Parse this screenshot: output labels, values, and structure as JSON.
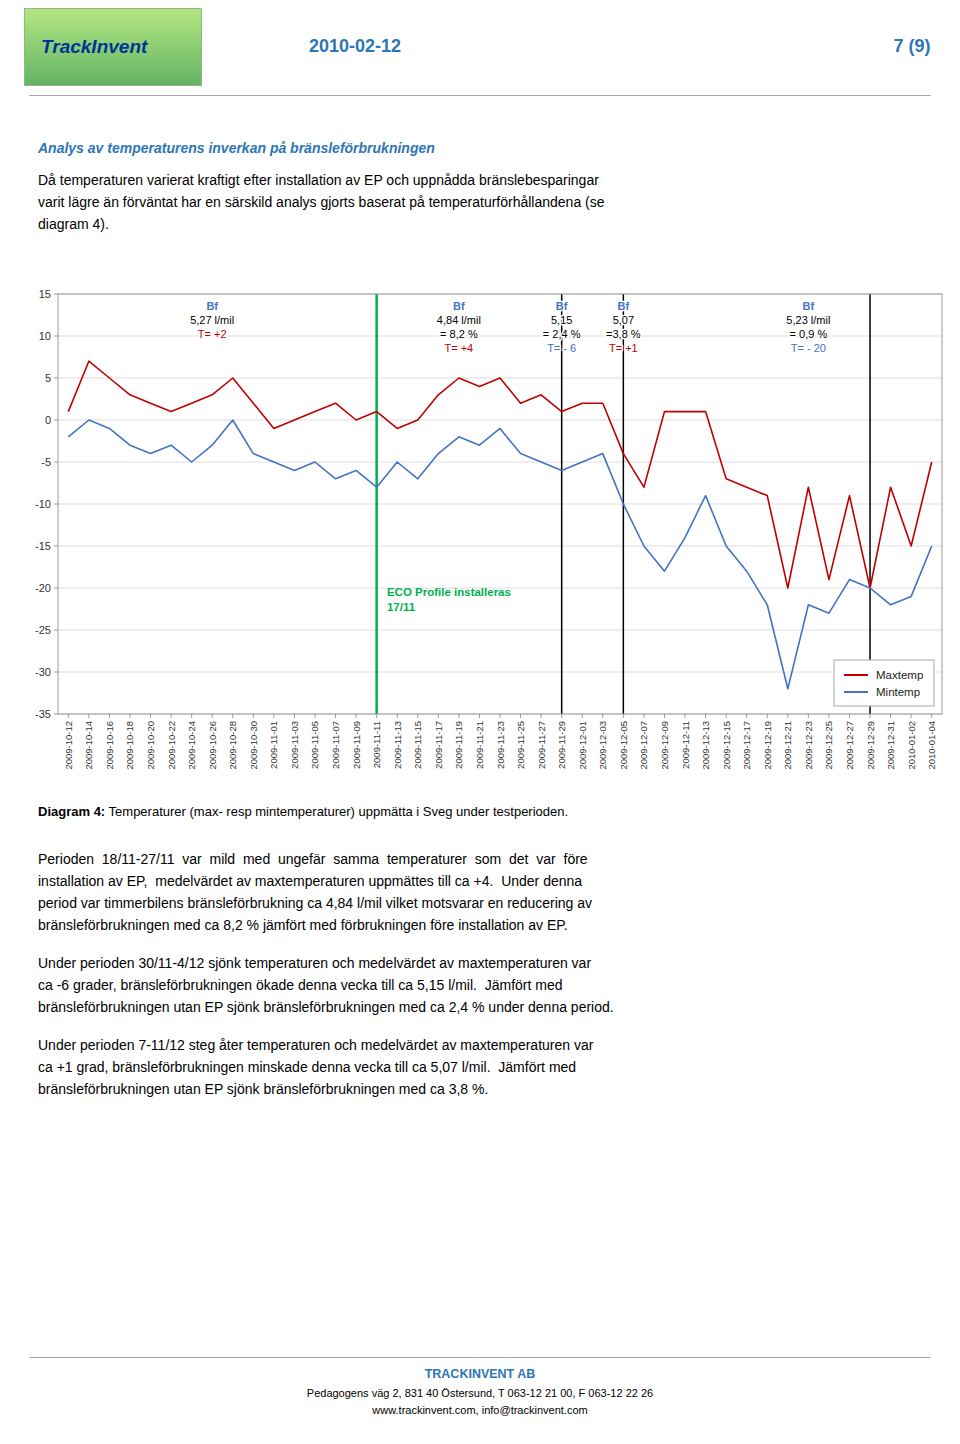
{
  "page": {
    "logo": "TrackInvent",
    "date": "2010-02-12",
    "page_num": "7 (9)",
    "header_color": "#2E75B6",
    "border_color": "#AAAAAA",
    "heading": "Analys av temperaturens inverkan på bränsleförbrukningen",
    "intro_lines": [
      "Då temperaturen varierat kraftigt efter installation av EP och uppnådda bränslebesparingar",
      "varit lägre än förväntat har en särskild analys gjorts baserat på temperaturförhållandena (se",
      "diagram 4)."
    ],
    "caption_bold": "Diagram 4:",
    "caption": " Temperaturer (max- resp mintemperaturer) uppmätta i Sveg under testperioden.",
    "paragraphs": [
      "Perioden  18/11-27/11  var  mild  med  ungefär  samma  temperaturer  som  det  var  före\ninstallation av EP,  medelvärdet av maxtemperaturen uppmättes till ca +4.  Under denna\nperiod var timmerbilens bränsleförbrukning ca 4,84 l/mil vilket motsvarar en reducering av\nbränsleförbrukningen med ca 8,2 % jämfört med förbrukningen före installation av EP.",
      "Under perioden 30/11-4/12 sjönk temperaturen och medelvärdet av maxtemperaturen var\nca -6 grader, bränsleförbrukningen ökade denna vecka till ca 5,15 l/mil.  Jämfört med\nbränsleförbrukningen utan EP sjönk bränsleförbrukningen med ca 2,4 % under denna period.",
      "Under perioden 7-11/12 steg åter temperaturen och medelvärdet av maxtemperaturen var\nca +1 grad, bränsleförbrukningen minskade denna vecka till ca 5,07 l/mil.  Jämfört med\nbränsleförbrukningen utan EP sjönk bränsleförbrukningen med ca 3,8 %."
    ],
    "footer_company": "TRACKINVENT AB",
    "footer_color": "#2E75B6",
    "footer_address": "Pedagogens väg 2, 831 40 Östersund, T 063-12 21 00, F 063-12 22 26",
    "footer_web": "www.trackinvent.com, info@trackinvent.com"
  },
  "chart_data": {
    "type": "line",
    "categories": [
      "2009-10-12",
      "2009-10-14",
      "2009-10-16",
      "2009-10-18",
      "2009-10-20",
      "2009-10-22",
      "2009-10-24",
      "2009-10-26",
      "2009-10-28",
      "2009-10-30",
      "2009-11-01",
      "2009-11-03",
      "2009-11-05",
      "2009-11-07",
      "2009-11-09",
      "2009-11-11",
      "2009-11-13",
      "2009-11-15",
      "2009-11-17",
      "2009-11-19",
      "2009-11-21",
      "2009-11-23",
      "2009-11-25",
      "2009-11-27",
      "2009-11-29",
      "2009-12-01",
      "2009-12-03",
      "2009-12-05",
      "2009-12-07",
      "2009-12-09",
      "2009-12-11",
      "2009-12-13",
      "2009-12-15",
      "2009-12-17",
      "2009-12-19",
      "2009-12-21",
      "2009-12-23",
      "2009-12-25",
      "2009-12-27",
      "2009-12-29",
      "2009-12-31",
      "2010-01-02",
      "2010-01-04"
    ],
    "series": [
      {
        "name": "Maxtemp",
        "color": "#C00000",
        "values": [
          1,
          7,
          5,
          3,
          2,
          1,
          2,
          3,
          5,
          2,
          -1,
          0,
          1,
          2,
          0,
          1,
          -1,
          0,
          3,
          5,
          4,
          5,
          2,
          3,
          1,
          2,
          2,
          -4,
          -8,
          1,
          1,
          1,
          -7,
          -8,
          -9,
          -20,
          -8,
          -19,
          -9,
          -20,
          -8,
          -15,
          -5
        ]
      },
      {
        "name": "Mintemp",
        "color": "#4472C4",
        "values": [
          -2,
          0,
          -1,
          -3,
          -4,
          -3,
          -5,
          -3,
          0,
          -4,
          -5,
          -6,
          -5,
          -7,
          -6,
          -8,
          -5,
          -7,
          -4,
          -2,
          -3,
          -1,
          -4,
          -5,
          -6,
          -5,
          -4,
          -10,
          -15,
          -18,
          -14,
          -9,
          -15,
          -18,
          -22,
          -32,
          -22,
          -23,
          -19,
          -20,
          -22,
          -21,
          -15
        ]
      }
    ],
    "ylim": [
      -35,
      15
    ],
    "yticks": [
      -35,
      -30,
      -25,
      -20,
      -15,
      -10,
      -5,
      0,
      5,
      10,
      15
    ],
    "grid": true,
    "legend": "lower right",
    "vlines": [
      {
        "x": "2009-11-11",
        "color": "#00B050",
        "label": [
          "ECO Profile installeras",
          "17/11"
        ]
      },
      {
        "x": "2009-11-29",
        "color": "#000000"
      },
      {
        "x": "2009-12-05",
        "color": "#000000"
      },
      {
        "x": "2009-12-29",
        "color": "#000000"
      }
    ],
    "annotations": [
      {
        "x": "2009-10-26",
        "lines": [
          {
            "text": "Bf",
            "color": "#4472C4"
          },
          {
            "text": "5,27 l/mil",
            "color": "#000000"
          },
          {
            "text": "T= +2",
            "color": "#C00000"
          }
        ]
      },
      {
        "x": "2009-11-19",
        "lines": [
          {
            "text": "Bf",
            "color": "#4472C4"
          },
          {
            "text": "4,84 l/mil",
            "color": "#000000"
          },
          {
            "text": "= 8,2 %",
            "color": "#000000"
          },
          {
            "text": "T= +4",
            "color": "#C00000"
          }
        ]
      },
      {
        "x": "2009-11-29",
        "lines": [
          {
            "text": "Bf",
            "color": "#4472C4"
          },
          {
            "text": "5,15",
            "color": "#000000"
          },
          {
            "text": "= 2,4 %",
            "color": "#000000"
          },
          {
            "text": "T= - 6",
            "color": "#4472C4"
          }
        ]
      },
      {
        "x": "2009-12-05",
        "lines": [
          {
            "text": "Bf",
            "color": "#4472C4"
          },
          {
            "text": "5,07",
            "color": "#000000"
          },
          {
            "text": "=3,8 %",
            "color": "#000000"
          },
          {
            "text": "T= +1",
            "color": "#C00000"
          }
        ]
      },
      {
        "x": "2009-12-23",
        "lines": [
          {
            "text": "Bf",
            "color": "#4472C4"
          },
          {
            "text": "5,23 l/mil",
            "color": "#000000"
          },
          {
            "text": "= 0,9 %",
            "color": "#000000"
          },
          {
            "text": "T= - 20",
            "color": "#4472C4"
          }
        ]
      }
    ]
  }
}
